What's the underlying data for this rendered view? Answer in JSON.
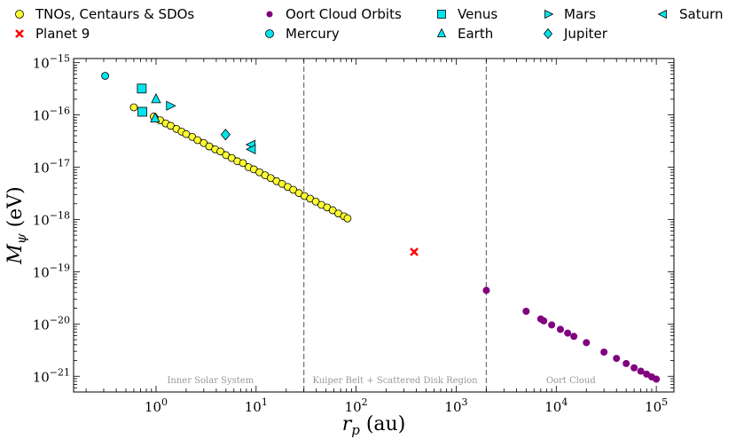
{
  "chart_data": {
    "type": "scatter",
    "xscale": "log",
    "yscale": "log",
    "xlim": [
      0.15,
      150000
    ],
    "ylim": [
      5e-22,
      1.2e-15
    ],
    "xlabel": "r_p (au)",
    "ylabel": "M_ψ (eV)",
    "x_ticks": [
      {
        "value": 1,
        "label": "10^0"
      },
      {
        "value": 10,
        "label": "10^1"
      },
      {
        "value": 100,
        "label": "10^2"
      },
      {
        "value": 1000,
        "label": "10^3"
      },
      {
        "value": 10000,
        "label": "10^4"
      },
      {
        "value": 100000,
        "label": "10^5"
      }
    ],
    "y_ticks": [
      {
        "value": 1e-15,
        "label": "10^-15"
      },
      {
        "value": 1e-16,
        "label": "10^-16"
      },
      {
        "value": 1e-17,
        "label": "10^-17"
      },
      {
        "value": 1e-18,
        "label": "10^-18"
      },
      {
        "value": 1e-19,
        "label": "10^-19"
      },
      {
        "value": 1e-20,
        "label": "10^-20"
      },
      {
        "value": 1e-21,
        "label": "10^-21"
      }
    ],
    "region_boundaries": [
      30,
      2000
    ],
    "regions": [
      {
        "label": "Inner Solar System",
        "x_center": 3.5
      },
      {
        "label": "Kuiper Belt + Scattered Disk Region",
        "x_center": 245
      },
      {
        "label": "Oort Cloud",
        "x_center": 14000
      }
    ],
    "series": [
      {
        "name": "TNOs, Centaurs & SDOs",
        "marker": "circle",
        "color": "#ffff33",
        "points": [
          [
            0.6,
            1.4e-16
          ],
          [
            0.95,
            9.3e-17
          ],
          [
            1.1,
            7.9e-17
          ],
          [
            1.25,
            6.9e-17
          ],
          [
            1.4,
            6.2e-17
          ],
          [
            1.6,
            5.4e-17
          ],
          [
            1.8,
            4.8e-17
          ],
          [
            2.0,
            4.3e-17
          ],
          [
            2.3,
            3.8e-17
          ],
          [
            2.6,
            3.3e-17
          ],
          [
            3.0,
            2.9e-17
          ],
          [
            3.4,
            2.5e-17
          ],
          [
            3.9,
            2.2e-17
          ],
          [
            4.4,
            2e-17
          ],
          [
            5.0,
            1.7e-17
          ],
          [
            5.7,
            1.5e-17
          ],
          [
            6.5,
            1.3e-17
          ],
          [
            7.4,
            1.2e-17
          ],
          [
            8.4,
            1e-17
          ],
          [
            9.5,
            9.1e-18
          ],
          [
            10.8,
            8e-18
          ],
          [
            12.3,
            7e-18
          ],
          [
            14.0,
            6.2e-18
          ],
          [
            16.0,
            5.4e-18
          ],
          [
            18.2,
            4.8e-18
          ],
          [
            20.7,
            4.2e-18
          ],
          [
            23.5,
            3.7e-18
          ],
          [
            26.8,
            3.2e-18
          ],
          [
            30.5,
            2.8e-18
          ],
          [
            34.7,
            2.5e-18
          ],
          [
            39.5,
            2.2e-18
          ],
          [
            45.0,
            1.9e-18
          ],
          [
            51.2,
            1.7e-18
          ],
          [
            58.3,
            1.5e-18
          ],
          [
            66.4,
            1.3e-18
          ],
          [
            75.6,
            1.15e-18
          ],
          [
            82.0,
            1.05e-18
          ]
        ]
      },
      {
        "name": "Planet 9",
        "marker": "x",
        "color": "#ff0000",
        "points": [
          [
            380,
            2.4e-19
          ]
        ]
      },
      {
        "name": "Oort Cloud Orbits",
        "marker": "circle",
        "color": "#800080",
        "points": [
          [
            2000,
            4.4e-20
          ],
          [
            5000,
            1.75e-20
          ],
          [
            7000,
            1.25e-20
          ],
          [
            7500,
            1.15e-20
          ],
          [
            9000,
            9.6e-21
          ],
          [
            11000,
            7.9e-21
          ],
          [
            13000,
            6.7e-21
          ],
          [
            15000,
            5.8e-21
          ],
          [
            20000,
            4.4e-21
          ],
          [
            30000,
            2.9e-21
          ],
          [
            40000,
            2.2e-21
          ],
          [
            50000,
            1.75e-21
          ],
          [
            60000,
            1.45e-21
          ],
          [
            70000,
            1.25e-21
          ],
          [
            80000,
            1.1e-21
          ],
          [
            90000,
            9.7e-22
          ],
          [
            100000,
            8.8e-22
          ]
        ]
      },
      {
        "name": "Mercury",
        "marker": "circle",
        "color": "#00e5ee",
        "points": [
          [
            0.31,
            5.6e-16
          ]
        ]
      },
      {
        "name": "Venus",
        "marker": "square",
        "color": "#00e5ee",
        "points": [
          [
            0.72,
            3.2e-16
          ],
          [
            0.73,
            1.15e-16
          ]
        ]
      },
      {
        "name": "Earth",
        "marker": "triangle-up",
        "color": "#00e5ee",
        "points": [
          [
            0.98,
            8.6e-17
          ],
          [
            1.0,
            2e-16
          ]
        ]
      },
      {
        "name": "Mars",
        "marker": "triangle-right",
        "color": "#00e5ee",
        "points": [
          [
            1.38,
            1.5e-16
          ]
        ]
      },
      {
        "name": "Jupiter",
        "marker": "diamond",
        "color": "#00e5ee",
        "points": [
          [
            4.95,
            4.2e-17
          ]
        ]
      },
      {
        "name": "Saturn",
        "marker": "triangle-left",
        "color": "#00e5ee",
        "points": [
          [
            9.0,
            2.7e-17
          ],
          [
            9.05,
            2.2e-17
          ]
        ]
      }
    ],
    "legend": [
      {
        "label": "TNOs, Centaurs & SDOs",
        "marker": "circle",
        "color": "#ffff33"
      },
      {
        "label": "Oort Cloud Orbits",
        "marker": "circle-small",
        "color": "#800080"
      },
      {
        "label": "Venus",
        "marker": "square",
        "color": "#00e5ee"
      },
      {
        "label": "Mars",
        "marker": "triangle-right",
        "color": "#00e5ee"
      },
      {
        "label": "Saturn",
        "marker": "triangle-left",
        "color": "#00e5ee"
      },
      {
        "label": "Planet 9",
        "marker": "x",
        "color": "#ff0000"
      },
      {
        "label": "Mercury",
        "marker": "circle",
        "color": "#00e5ee"
      },
      {
        "label": "Earth",
        "marker": "triangle-up",
        "color": "#00e5ee"
      },
      {
        "label": "Jupiter",
        "marker": "diamond",
        "color": "#00e5ee"
      }
    ]
  }
}
